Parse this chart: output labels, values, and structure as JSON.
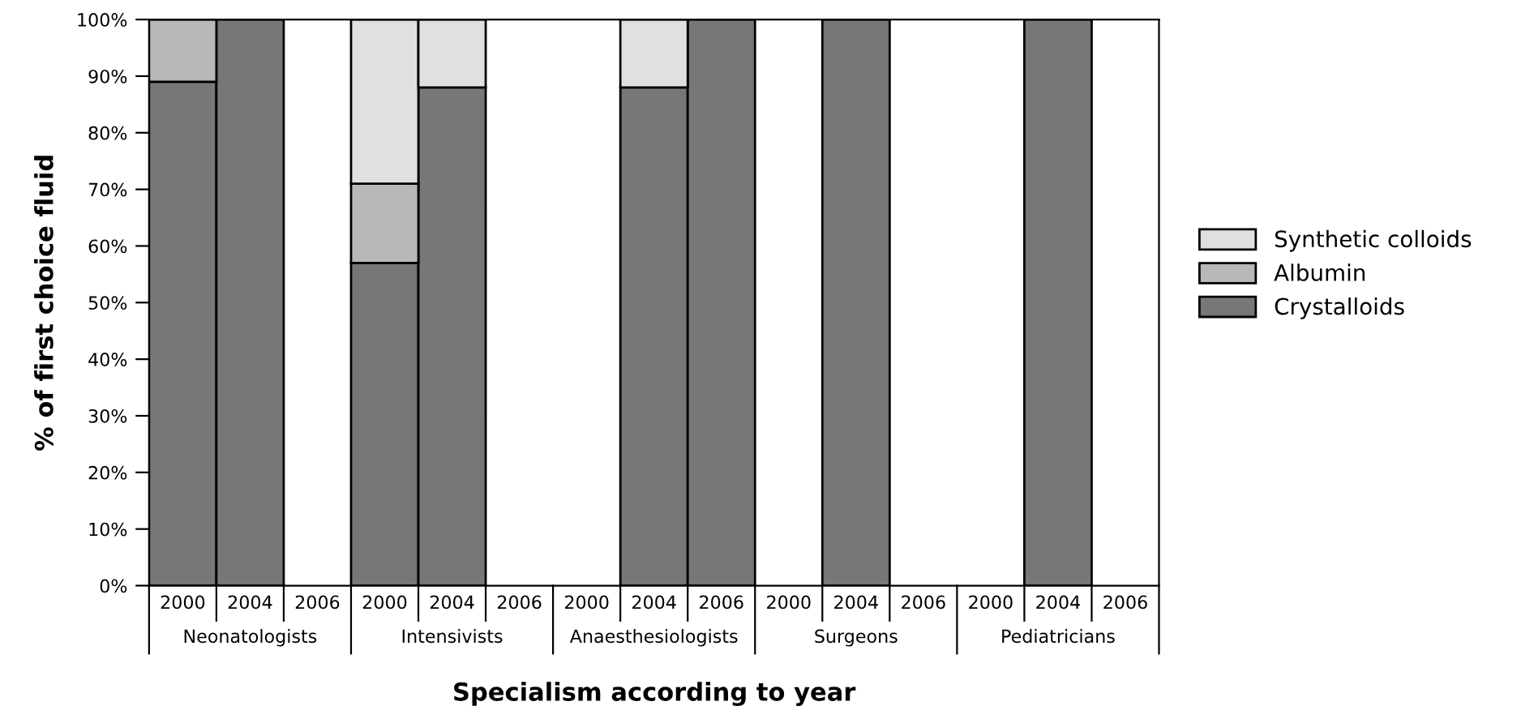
{
  "chart_data": {
    "type": "bar",
    "stacked": true,
    "xlabel": "Specialism according to year",
    "ylabel": "% of first choice fluid",
    "categories": [
      "2000",
      "2004",
      "2006",
      "2000",
      "2004",
      "2006",
      "2000",
      "2004",
      "2006",
      "2000",
      "2004",
      "2006",
      "2000",
      "2004",
      "2006"
    ],
    "annotations": [
      "Neonatologists",
      "Intensivists",
      "Anaesthesiologists",
      "Surgeons",
      "Pediatricians"
    ],
    "series": [
      {
        "name": "Crystalloids",
        "color": "#777777",
        "values": [
          89,
          100,
          null,
          57,
          88,
          null,
          null,
          88,
          100,
          null,
          100,
          null,
          null,
          100,
          null
        ]
      },
      {
        "name": "Albumin",
        "color": "#b8b8b8",
        "values": [
          11,
          null,
          null,
          14,
          null,
          null,
          null,
          null,
          null,
          null,
          null,
          null,
          null,
          null,
          null
        ]
      },
      {
        "name": "Synthetic colloids",
        "color": "#e0e0e0",
        "values": [
          null,
          null,
          null,
          29,
          12,
          null,
          null,
          12,
          null,
          null,
          null,
          null,
          null,
          null,
          null
        ]
      }
    ],
    "ylim": [
      0,
      100
    ],
    "yticks": [
      {
        "value": 0,
        "label": "0%"
      },
      {
        "value": 10,
        "label": "10%"
      },
      {
        "value": 20,
        "label": "20%"
      },
      {
        "value": 30,
        "label": "30%"
      },
      {
        "value": 40,
        "label": "40%"
      },
      {
        "value": 50,
        "label": "50%"
      },
      {
        "value": 60,
        "label": "60%"
      },
      {
        "value": 70,
        "label": "70%"
      },
      {
        "value": 80,
        "label": "80%"
      },
      {
        "value": 90,
        "label": "90%"
      },
      {
        "value": 100,
        "label": "100%"
      }
    ],
    "legend": "right",
    "grid": false
  }
}
